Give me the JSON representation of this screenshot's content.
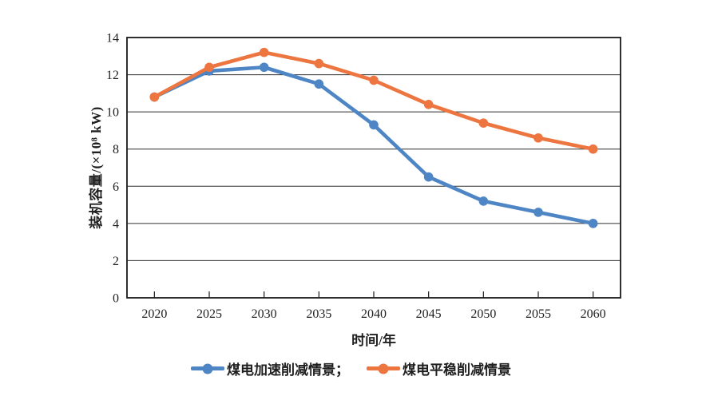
{
  "chart_data": {
    "type": "line",
    "x": [
      "2020",
      "2025",
      "2030",
      "2035",
      "2040",
      "2045",
      "2050",
      "2055",
      "2060"
    ],
    "series": [
      {
        "name": "煤电加速削减情景",
        "color": "#4E86C5",
        "values": [
          10.8,
          12.2,
          12.4,
          11.5,
          9.3,
          6.5,
          5.2,
          4.6,
          4.0
        ]
      },
      {
        "name": "煤电平稳削减情景",
        "color": "#ED7540",
        "values": [
          10.8,
          12.4,
          13.2,
          12.6,
          11.7,
          10.4,
          9.4,
          8.6,
          8.0
        ]
      }
    ],
    "title": "",
    "xlabel": "时间/年",
    "ylabel": "装机容量/(×10⁸ kW)",
    "ylim": [
      0,
      14
    ],
    "yticks": [
      0,
      2,
      4,
      6,
      8,
      10,
      12,
      14
    ],
    "grid": "horizontal-only",
    "plot_border": "box",
    "marker": "circle",
    "legend_position": "bottom-center",
    "legend": [
      {
        "label": "煤电加速削减情景；"
      },
      {
        "label": "煤电平稳削减情景"
      }
    ],
    "colors": {
      "accelerated_series_blue": "#4E86C5",
      "steady_series_orange": "#ED7540",
      "gridline": "#2f2f2f",
      "axis_border": "#1a1a1a",
      "text": "#1f1f1f",
      "background": "#ffffff"
    }
  }
}
